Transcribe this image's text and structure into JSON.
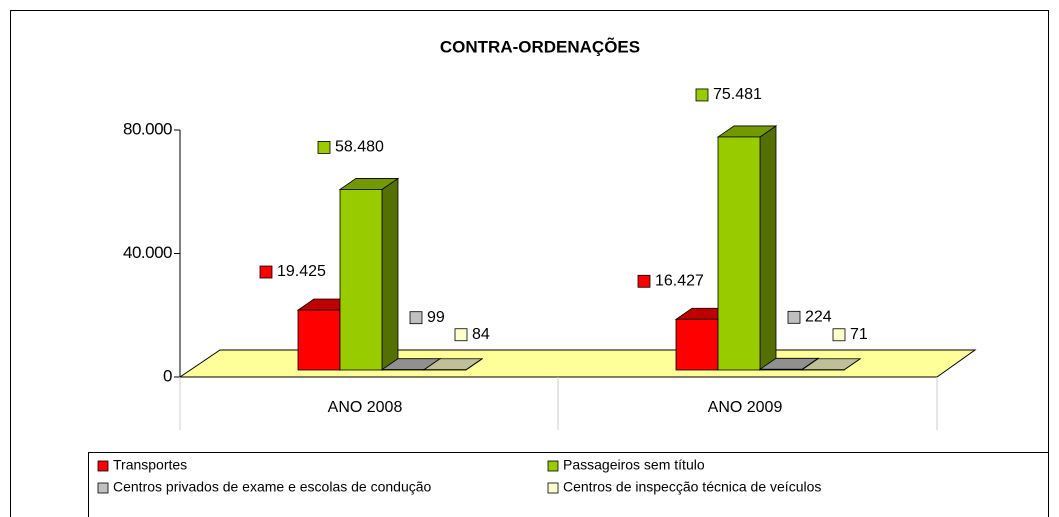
{
  "chart_data": {
    "type": "bar3d",
    "title": "CONTRA-ORDENAÇÕES",
    "categories": [
      "ANO 2008",
      "ANO 2009"
    ],
    "series": [
      {
        "name": "Transportes",
        "color": "#ff0000",
        "values": [
          19425,
          16427
        ],
        "value_labels": [
          "19.425",
          "16.427"
        ]
      },
      {
        "name": "Passageiros sem título",
        "color": "#99cc00",
        "values": [
          58480,
          75481
        ],
        "value_labels": [
          "58.480",
          "75.481"
        ]
      },
      {
        "name": "Centros privados de exame e escolas de condução",
        "color": "#c0c0c0",
        "values": [
          99,
          224
        ]
      },
      {
        "name": "Centros de inspecção técnica de veículos",
        "color": "#ffffcc",
        "values": [
          84,
          71
        ]
      }
    ],
    "ylim": [
      0,
      80000
    ],
    "yticks": [
      0,
      {
        "value": 40000,
        "label": "40.000"
      },
      {
        "value": 80000,
        "label": "80.000"
      }
    ],
    "floor_color": "#ffff99",
    "legend": "bottom"
  }
}
